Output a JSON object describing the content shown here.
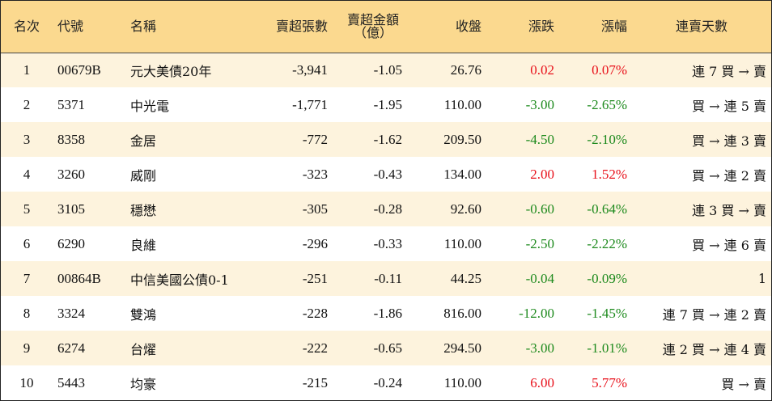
{
  "headers": {
    "rank": "名次",
    "code": "代號",
    "name": "名稱",
    "net_sell_lots": "賣超張數",
    "net_sell_amount_line1": "賣超金額",
    "net_sell_amount_line2": "（億）",
    "close": "收盤",
    "change": "漲跌",
    "change_pct": "漲幅",
    "streak": "連賣天數"
  },
  "colors": {
    "header_bg": "#fbd98f",
    "stripe": "#fdf3dd",
    "up": "#e8101a",
    "down": "#1d8a1d"
  },
  "rows": [
    {
      "rank": "1",
      "code": "00679B",
      "name": "元大美債20年",
      "lots": "-3,941",
      "amount": "-1.05",
      "close": "26.76",
      "change": "0.02",
      "pct": "0.07%",
      "dir": "up",
      "streak": "連 7 買 → 賣"
    },
    {
      "rank": "2",
      "code": "5371",
      "name": "中光電",
      "lots": "-1,771",
      "amount": "-1.95",
      "close": "110.00",
      "change": "-3.00",
      "pct": "-2.65%",
      "dir": "down",
      "streak": "買 → 連 5 賣"
    },
    {
      "rank": "3",
      "code": "8358",
      "name": "金居",
      "lots": "-772",
      "amount": "-1.62",
      "close": "209.50",
      "change": "-4.50",
      "pct": "-2.10%",
      "dir": "down",
      "streak": "買 → 連 3 賣"
    },
    {
      "rank": "4",
      "code": "3260",
      "name": "威剛",
      "lots": "-323",
      "amount": "-0.43",
      "close": "134.00",
      "change": "2.00",
      "pct": "1.52%",
      "dir": "up",
      "streak": "買 → 連 2 賣"
    },
    {
      "rank": "5",
      "code": "3105",
      "name": "穩懋",
      "lots": "-305",
      "amount": "-0.28",
      "close": "92.60",
      "change": "-0.60",
      "pct": "-0.64%",
      "dir": "down",
      "streak": "連 3 買 → 賣"
    },
    {
      "rank": "6",
      "code": "6290",
      "name": "良維",
      "lots": "-296",
      "amount": "-0.33",
      "close": "110.00",
      "change": "-2.50",
      "pct": "-2.22%",
      "dir": "down",
      "streak": "買 → 連 6 賣"
    },
    {
      "rank": "7",
      "code": "00864B",
      "name": "中信美國公債0-1",
      "lots": "-251",
      "amount": "-0.11",
      "close": "44.25",
      "change": "-0.04",
      "pct": "-0.09%",
      "dir": "down",
      "streak": "1"
    },
    {
      "rank": "8",
      "code": "3324",
      "name": "雙鴻",
      "lots": "-228",
      "amount": "-1.86",
      "close": "816.00",
      "change": "-12.00",
      "pct": "-1.45%",
      "dir": "down",
      "streak": "連 7 買 → 連 2 賣"
    },
    {
      "rank": "9",
      "code": "6274",
      "name": "台燿",
      "lots": "-222",
      "amount": "-0.65",
      "close": "294.50",
      "change": "-3.00",
      "pct": "-1.01%",
      "dir": "down",
      "streak": "連 2 買 → 連 4 賣"
    },
    {
      "rank": "10",
      "code": "5443",
      "name": "均豪",
      "lots": "-215",
      "amount": "-0.24",
      "close": "110.00",
      "change": "6.00",
      "pct": "5.77%",
      "dir": "up",
      "streak": "買 → 賣"
    }
  ]
}
